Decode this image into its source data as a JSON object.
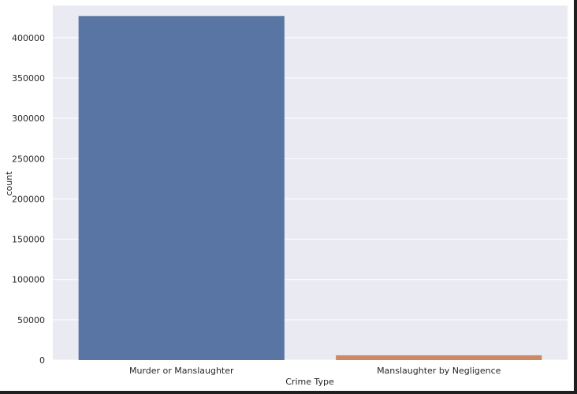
{
  "chart_data": {
    "type": "bar",
    "title": "",
    "xlabel": "Crime Type",
    "ylabel": "count",
    "categories": [
      "Murder or Manslaughter",
      "Manslaughter by Negligence"
    ],
    "values": [
      427000,
      6000
    ],
    "bar_colors": [
      "#5975a4",
      "#cc8963"
    ],
    "ylim": [
      0,
      440000
    ],
    "yticks": [
      0,
      50000,
      100000,
      150000,
      200000,
      250000,
      300000,
      350000,
      400000
    ],
    "grid": true,
    "background_color": "#eaeaf2",
    "grid_color": "#ffffff"
  }
}
